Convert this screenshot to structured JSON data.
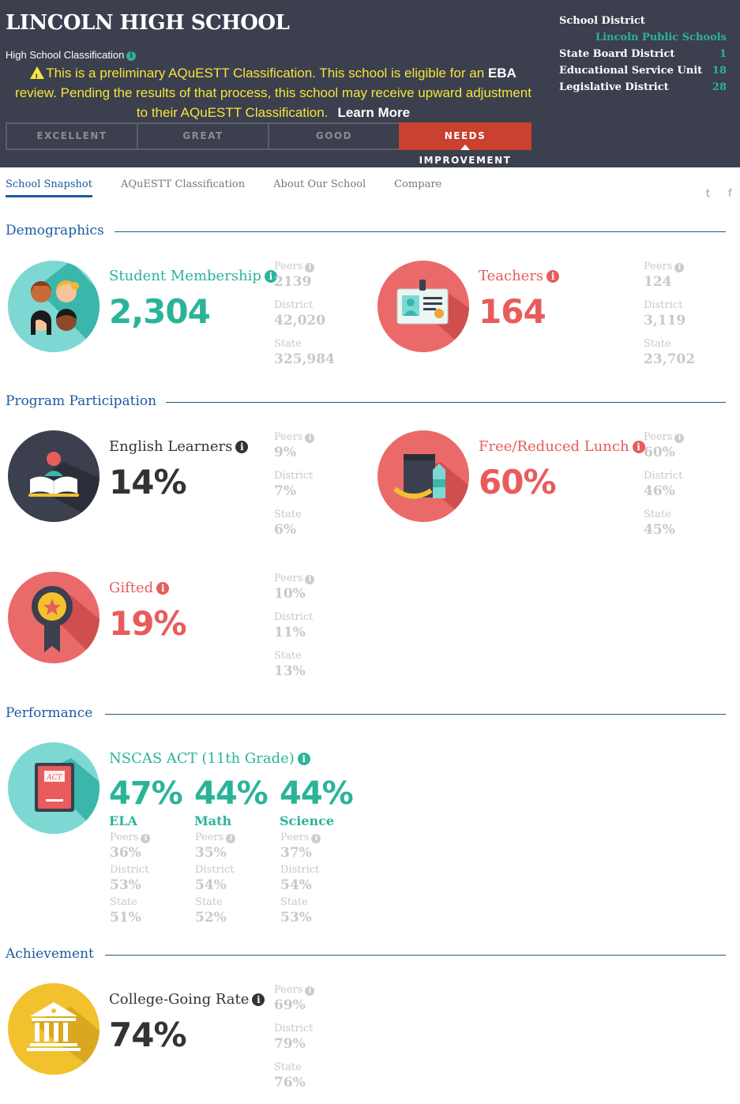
{
  "header": {
    "title": "LINCOLN HIGH SCHOOL",
    "classification_label": "High School Classification",
    "notice_part1": "This is a preliminary AQuESTT Classification. This school is eligible for an ",
    "notice_bold": "EBA",
    "notice_part2": " review. Pending the results of that process, this school may receive upward adjustment to their AQuESTT Classification.",
    "learn_more": "Learn More",
    "levels": [
      "EXCELLENT",
      "GREAT",
      "GOOD",
      "NEEDS IMPROVEMENT"
    ],
    "active_level": "NEEDS IMPROVEMENT",
    "district": {
      "school_district_label": "School District",
      "school_district_value": "Lincoln Public Schools",
      "state_board_label": "State Board District",
      "state_board_value": "1",
      "esu_label": "Educational Service Unit",
      "esu_value": "18",
      "legislative_label": "Legislative District",
      "legislative_value": "28"
    }
  },
  "tabs": [
    "School Snapshot",
    "AQuESTT Classification",
    "About Our School",
    "Compare"
  ],
  "active_tab": "School Snapshot",
  "social": {
    "twitter": "t",
    "facebook": "f"
  },
  "cmp_labels": {
    "peers": "Peers",
    "district": "District",
    "state": "State"
  },
  "sections": {
    "demographics": "Demographics",
    "program": "Program Participation",
    "performance": "Performance",
    "achievement": "Achievement"
  },
  "metrics": {
    "membership": {
      "label": "Student Membership",
      "value": "2,304",
      "peers": "2139",
      "district": "42,020",
      "state": "325,984"
    },
    "teachers": {
      "label": "Teachers",
      "value": "164",
      "peers": "124",
      "district": "3,119",
      "state": "23,702"
    },
    "english": {
      "label": "English Learners",
      "value": "14%",
      "peers": "9%",
      "district": "7%",
      "state": "6%"
    },
    "lunch": {
      "label": "Free/Reduced Lunch",
      "value": "60%",
      "peers": "60%",
      "district": "46%",
      "state": "45%"
    },
    "gifted": {
      "label": "Gifted",
      "value": "19%",
      "peers": "10%",
      "district": "11%",
      "state": "13%"
    },
    "college": {
      "label": "College-Going Rate",
      "value": "74%",
      "peers": "69%",
      "district": "79%",
      "state": "76%"
    }
  },
  "act": {
    "label": "NSCAS ACT (11th Grade)",
    "icon_text": "ACT",
    "subjects": [
      {
        "name": "ELA",
        "value": "47%",
        "peers": "36%",
        "district": "53%",
        "state": "51%"
      },
      {
        "name": "Math",
        "value": "44%",
        "peers": "35%",
        "district": "54%",
        "state": "52%"
      },
      {
        "name": "Science",
        "value": "44%",
        "peers": "37%",
        "district": "54%",
        "state": "53%"
      }
    ]
  },
  "colors": {
    "header_bg": "#3b3f4e",
    "teal": "#2bb39a",
    "red": "#e85c5c",
    "accent_blue": "#1c5aa0",
    "notice_yellow": "#f5e53a",
    "needs_improvement": "#c9412f"
  }
}
